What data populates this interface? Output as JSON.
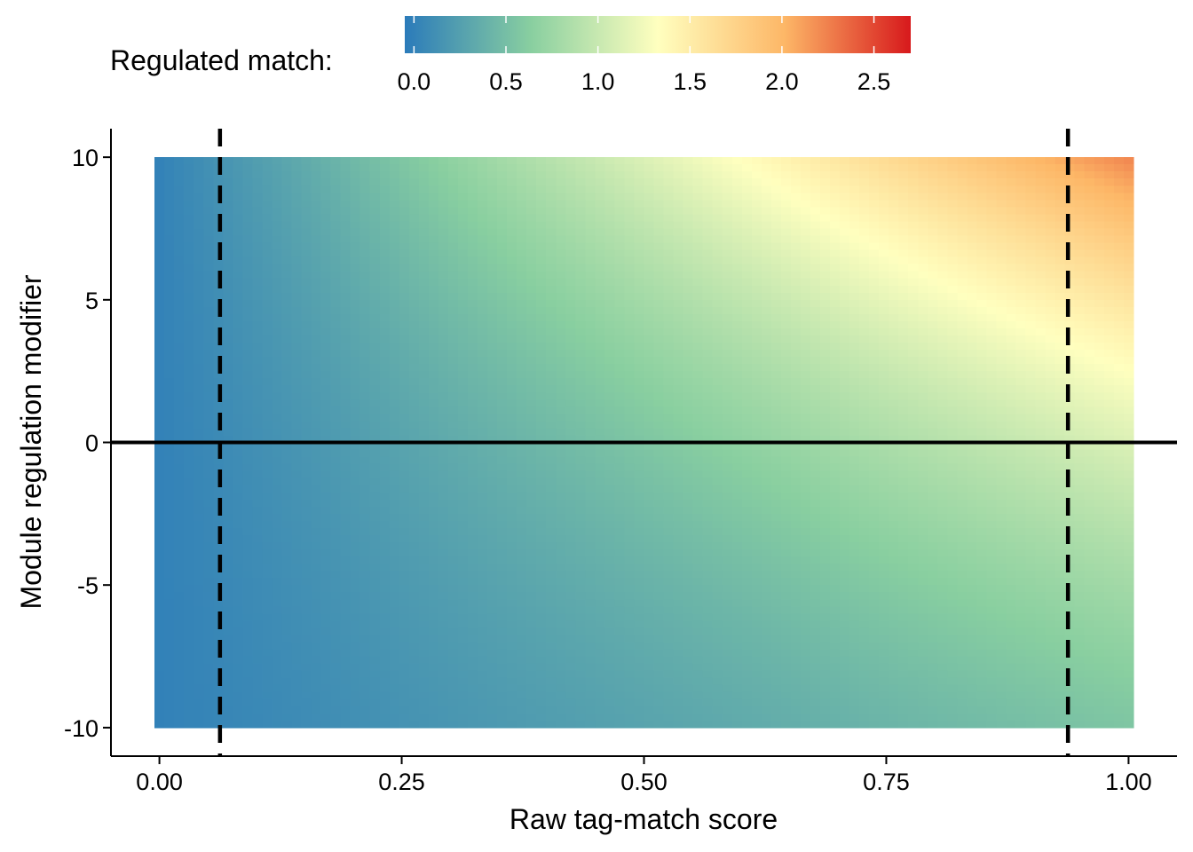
{
  "chart_data": {
    "type": "heatmap",
    "title": "",
    "xlabel": "Raw tag-match score",
    "ylabel": "Module regulation modifier",
    "xlim": [
      -0.05,
      1.05
    ],
    "ylim": [
      -11,
      11
    ],
    "x_ticks": [
      0.0,
      0.25,
      0.5,
      0.75,
      1.0
    ],
    "x_tick_labels": [
      "0.00",
      "0.25",
      "0.50",
      "0.75",
      "1.00"
    ],
    "y_ticks": [
      -10,
      -5,
      0,
      5,
      10
    ],
    "y_tick_labels": [
      "-10",
      "-5",
      "0",
      "5",
      "10"
    ],
    "x_range": [
      0.0,
      1.0
    ],
    "y_range": [
      -10,
      10
    ],
    "grid_resolution": {
      "x_cells": 100,
      "y_cells": 80
    },
    "value_grid_samples": {
      "x": [
        0.0,
        0.25,
        0.5,
        0.75,
        1.0
      ],
      "rows": [
        {
          "y": 10,
          "values": [
            0.0,
            0.6,
            1.2,
            1.75,
            2.65
          ]
        },
        {
          "y": 5,
          "values": [
            0.0,
            0.5,
            0.95,
            1.3,
            1.9
          ]
        },
        {
          "y": 0,
          "values": [
            0.0,
            0.35,
            0.6,
            0.85,
            1.15
          ]
        },
        {
          "y": -5,
          "values": [
            0.0,
            0.25,
            0.42,
            0.58,
            0.75
          ]
        },
        {
          "y": -10,
          "values": [
            0.0,
            0.15,
            0.3,
            0.43,
            0.55
          ]
        }
      ]
    },
    "reference_lines": [
      {
        "orientation": "vertical",
        "x": 0.0625,
        "style": "dashed",
        "color": "#000000"
      },
      {
        "orientation": "vertical",
        "x": 0.9375,
        "style": "dashed",
        "color": "#000000"
      },
      {
        "orientation": "horizontal",
        "y": 0,
        "style": "solid",
        "color": "#000000"
      }
    ],
    "legend": {
      "title": "Regulated match:",
      "position": "top",
      "range": [
        -0.05,
        2.7
      ],
      "ticks": [
        0.0,
        0.5,
        1.0,
        1.5,
        2.0,
        2.5
      ],
      "tick_labels": [
        "0.0",
        "0.5",
        "1.0",
        "1.5",
        "2.0",
        "2.5"
      ],
      "palette": "Spectral (reversed)",
      "colors": [
        "#2B7BBA",
        "#89CFA0",
        "#FFFFBF",
        "#FDB767",
        "#D7191C"
      ]
    },
    "grid": false
  }
}
